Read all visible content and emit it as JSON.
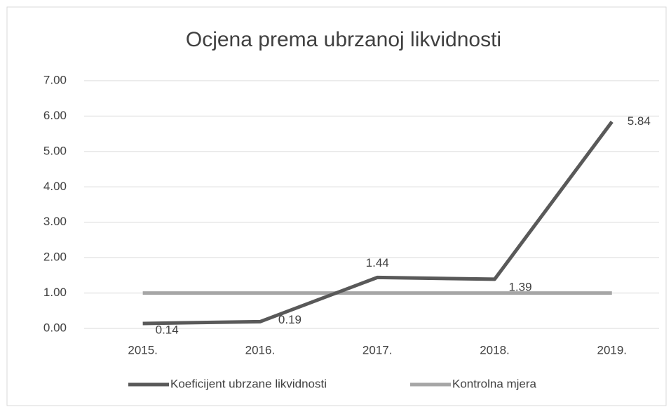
{
  "chart_data": {
    "type": "line",
    "title": "Ocjena prema ubrzanoj likvidnosti",
    "categories": [
      "2015.",
      "2016.",
      "2017.",
      "2018.",
      "2019."
    ],
    "series": [
      {
        "name": "Koeficijent ubrzane likvidnosti",
        "color": "#595959",
        "values": [
          0.14,
          0.19,
          1.44,
          1.39,
          5.84
        ]
      },
      {
        "name": "Kontrolna mjera",
        "color": "#a6a6a6",
        "values": [
          1,
          1,
          1,
          1,
          1
        ]
      }
    ],
    "ylim": [
      0,
      7
    ],
    "yticks": [
      {
        "value": 0,
        "label": "0.00"
      },
      {
        "value": 1,
        "label": "1.00"
      },
      {
        "value": 2,
        "label": "2.00"
      },
      {
        "value": 3,
        "label": "3.00"
      },
      {
        "value": 4,
        "label": "4.00"
      },
      {
        "value": 5,
        "label": "5.00"
      },
      {
        "value": 6,
        "label": "6.00"
      },
      {
        "value": 7,
        "label": "7.00"
      }
    ],
    "grid": true,
    "legend": "bottom"
  }
}
